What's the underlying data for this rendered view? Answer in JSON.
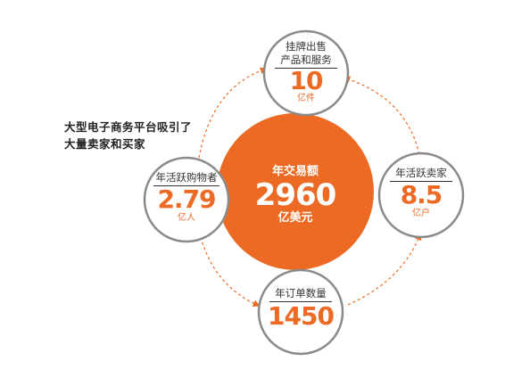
{
  "caption": {
    "line1": "大型电子商务平台吸引了",
    "line2": "大量卖家和买家"
  },
  "center": {
    "label": "年交易额",
    "value": "2960",
    "unit": "亿美元"
  },
  "nodes": {
    "top": {
      "label_line1": "挂牌出售",
      "label_line2": "产品和服务",
      "value": "10",
      "unit": "亿件"
    },
    "left": {
      "label": "年活跃购物者",
      "value": "2.79",
      "unit": "亿人"
    },
    "right": {
      "label": "年活跃卖家",
      "value": "8.5",
      "unit": "亿户"
    },
    "bottom": {
      "label": "年订单数量",
      "value": "1450",
      "unit": ""
    }
  },
  "colors": {
    "accent": "#ec6a23",
    "node_border": "#8a8a8a",
    "dash_arrow": "#ec6a23"
  }
}
